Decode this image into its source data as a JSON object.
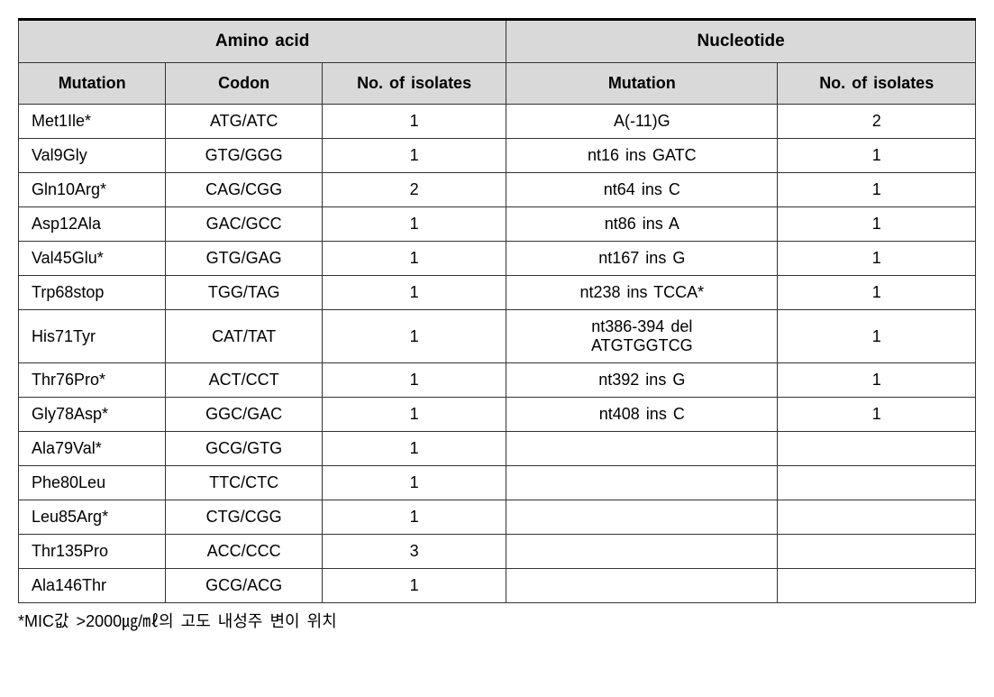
{
  "table": {
    "group_headers": {
      "amino_acid": "Amino acid",
      "nucleotide": "Nucleotide"
    },
    "sub_headers": {
      "aa_mutation": "Mutation",
      "codon": "Codon",
      "aa_isolates": "No. of isolates",
      "nt_mutation": "Mutation",
      "nt_isolates": "No. of isolates"
    },
    "rows": [
      {
        "aa_mutation": "Met1Ile*",
        "codon": "ATG/ATC",
        "aa_isolates": "1",
        "nt_mutation": "A(-11)G",
        "nt_isolates": "2"
      },
      {
        "aa_mutation": "Val9Gly",
        "codon": "GTG/GGG",
        "aa_isolates": "1",
        "nt_mutation": "nt16 ins GATC",
        "nt_isolates": "1"
      },
      {
        "aa_mutation": "Gln10Arg*",
        "codon": "CAG/CGG",
        "aa_isolates": "2",
        "nt_mutation": "nt64 ins C",
        "nt_isolates": "1"
      },
      {
        "aa_mutation": "Asp12Ala",
        "codon": "GAC/GCC",
        "aa_isolates": "1",
        "nt_mutation": "nt86 ins A",
        "nt_isolates": "1"
      },
      {
        "aa_mutation": "Val45Glu*",
        "codon": "GTG/GAG",
        "aa_isolates": "1",
        "nt_mutation": "nt167 ins G",
        "nt_isolates": "1"
      },
      {
        "aa_mutation": "Trp68stop",
        "codon": "TGG/TAG",
        "aa_isolates": "1",
        "nt_mutation": "nt238 ins TCCA*",
        "nt_isolates": "1"
      },
      {
        "aa_mutation": "His71Tyr",
        "codon": "CAT/TAT",
        "aa_isolates": "1",
        "nt_mutation": "nt386-394 del\nATGTGGTCG",
        "nt_isolates": "1"
      },
      {
        "aa_mutation": "Thr76Pro*",
        "codon": "ACT/CCT",
        "aa_isolates": "1",
        "nt_mutation": "nt392 ins G",
        "nt_isolates": "1"
      },
      {
        "aa_mutation": "Gly78Asp*",
        "codon": "GGC/GAC",
        "aa_isolates": "1",
        "nt_mutation": "nt408 ins C",
        "nt_isolates": "1"
      },
      {
        "aa_mutation": "Ala79Val*",
        "codon": "GCG/GTG",
        "aa_isolates": "1",
        "nt_mutation": "",
        "nt_isolates": ""
      },
      {
        "aa_mutation": "Phe80Leu",
        "codon": "TTC/CTC",
        "aa_isolates": "1",
        "nt_mutation": "",
        "nt_isolates": ""
      },
      {
        "aa_mutation": "Leu85Arg*",
        "codon": "CTG/CGG",
        "aa_isolates": "1",
        "nt_mutation": "",
        "nt_isolates": ""
      },
      {
        "aa_mutation": "Thr135Pro",
        "codon": "ACC/CCC",
        "aa_isolates": "3",
        "nt_mutation": "",
        "nt_isolates": ""
      },
      {
        "aa_mutation": "Ala146Thr",
        "codon": "GCG/ACG",
        "aa_isolates": "1",
        "nt_mutation": "",
        "nt_isolates": ""
      }
    ]
  },
  "footnote": "*MIC값 >2000㎍/㎖의 고도 내성주 변이 위치",
  "style": {
    "header_bg": "#d9d9d9",
    "border_color": "#333333",
    "top_border_color": "#000000",
    "background": "#ffffff",
    "font_size_header_group": 19,
    "font_size_body": 18
  }
}
